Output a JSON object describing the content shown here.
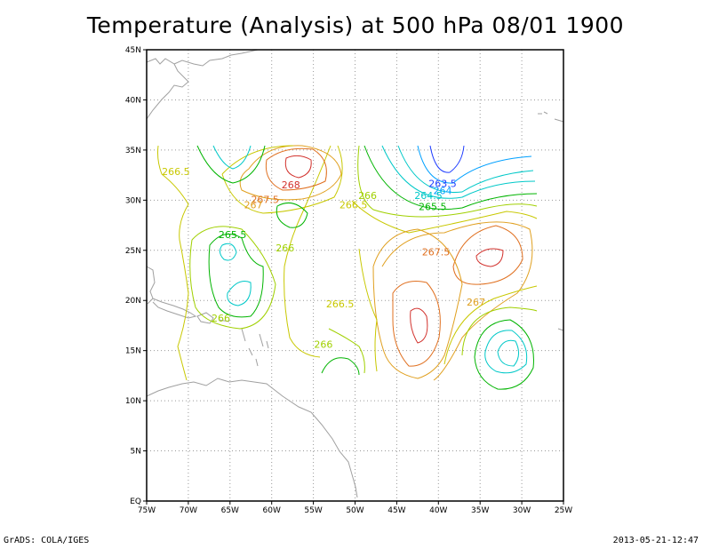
{
  "title": "Temperature (Analysis) at 500 hPa 08/01 1900",
  "credit": "GrADS: COLA/IGES",
  "timestamp": "2013-05-21-12:47",
  "axes": {
    "x_ticks": [
      "75W",
      "70W",
      "65W",
      "60W",
      "55W",
      "50W",
      "45W",
      "40W",
      "35W",
      "30W",
      "25W"
    ],
    "y_ticks": [
      "EQ",
      "5N",
      "10N",
      "15N",
      "20N",
      "25N",
      "30N",
      "35N",
      "40N",
      "45N"
    ],
    "lon_range": [
      -75,
      -25
    ],
    "lat_range": [
      0,
      45
    ],
    "grid": "dotted"
  },
  "contour_labels": [
    {
      "text": "266.5",
      "lon": -71.5,
      "lat": 32.5,
      "color": "#c8c800"
    },
    {
      "text": "268",
      "lon": -57.7,
      "lat": 31.2,
      "color": "#d2322d"
    },
    {
      "text": "267.5",
      "lon": -60.8,
      "lat": 29.7,
      "color": "#e07020"
    },
    {
      "text": "267",
      "lon": -62.2,
      "lat": 29.2,
      "color": "#e0a020"
    },
    {
      "text": "266",
      "lon": -48.5,
      "lat": 30.1,
      "color": "#a0d000"
    },
    {
      "text": "266.5",
      "lon": -50.2,
      "lat": 29.2,
      "color": "#c8c800"
    },
    {
      "text": "263.5",
      "lon": -39.5,
      "lat": 31.3,
      "color": "#1e3cff"
    },
    {
      "text": "264",
      "lon": -39.5,
      "lat": 30.6,
      "color": "#00a0ff"
    },
    {
      "text": "264.5",
      "lon": -41.2,
      "lat": 30.1,
      "color": "#00c8c8"
    },
    {
      "text": "265.5",
      "lon": -40.7,
      "lat": 29.0,
      "color": "#00b400"
    },
    {
      "text": "265.5",
      "lon": -64.7,
      "lat": 26.2,
      "color": "#00b400"
    },
    {
      "text": "266",
      "lon": -58.4,
      "lat": 24.9,
      "color": "#a0d000"
    },
    {
      "text": "267.5",
      "lon": -40.3,
      "lat": 24.5,
      "color": "#e07020"
    },
    {
      "text": "266.5",
      "lon": -51.8,
      "lat": 19.3,
      "color": "#c8c800"
    },
    {
      "text": "267",
      "lon": -35.5,
      "lat": 19.5,
      "color": "#e0a020"
    },
    {
      "text": "266",
      "lon": -66.1,
      "lat": 17.9,
      "color": "#a0d000"
    },
    {
      "text": "266",
      "lon": -53.8,
      "lat": 15.3,
      "color": "#a0d000"
    }
  ]
}
